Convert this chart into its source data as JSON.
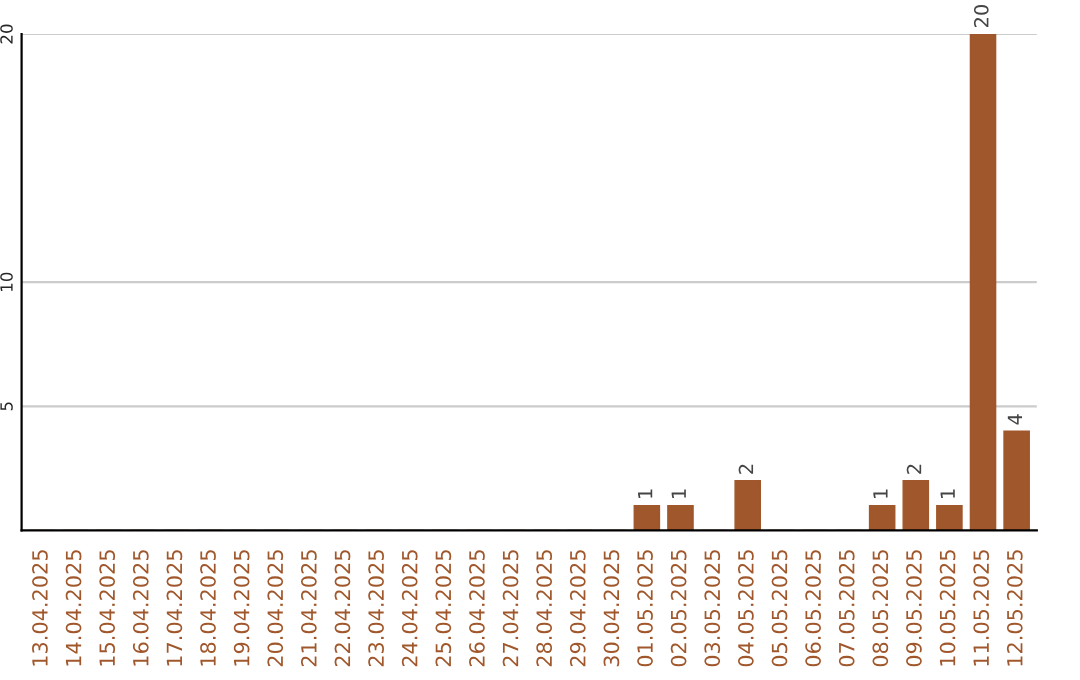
{
  "chart_data": {
    "type": "bar",
    "categories": [
      "13.04.2025",
      "14.04.2025",
      "15.04.2025",
      "16.04.2025",
      "17.04.2025",
      "18.04.2025",
      "19.04.2025",
      "20.04.2025",
      "21.04.2025",
      "22.04.2025",
      "23.04.2025",
      "24.04.2025",
      "25.04.2025",
      "26.04.2025",
      "27.04.2025",
      "28.04.2025",
      "29.04.2025",
      "30.04.2025",
      "01.05.2025",
      "02.05.2025",
      "03.05.2025",
      "04.05.2025",
      "05.05.2025",
      "06.05.2025",
      "07.05.2025",
      "08.05.2025",
      "09.05.2025",
      "10.05.2025",
      "11.05.2025",
      "12.05.2025"
    ],
    "values": [
      0,
      0,
      0,
      0,
      0,
      0,
      0,
      0,
      0,
      0,
      0,
      0,
      0,
      0,
      0,
      0,
      0,
      0,
      1,
      1,
      0,
      2,
      0,
      0,
      0,
      1,
      2,
      1,
      20,
      4
    ],
    "value_labels": [
      null,
      null,
      null,
      null,
      null,
      null,
      null,
      null,
      null,
      null,
      null,
      null,
      null,
      null,
      null,
      null,
      null,
      null,
      "1",
      "1",
      null,
      "2",
      null,
      null,
      null,
      "1",
      "2",
      "1",
      "20",
      "4"
    ],
    "color": "#a0572b",
    "ylim": [
      0,
      20
    ],
    "yticks": [
      5,
      10,
      20
    ],
    "grid": "y"
  }
}
